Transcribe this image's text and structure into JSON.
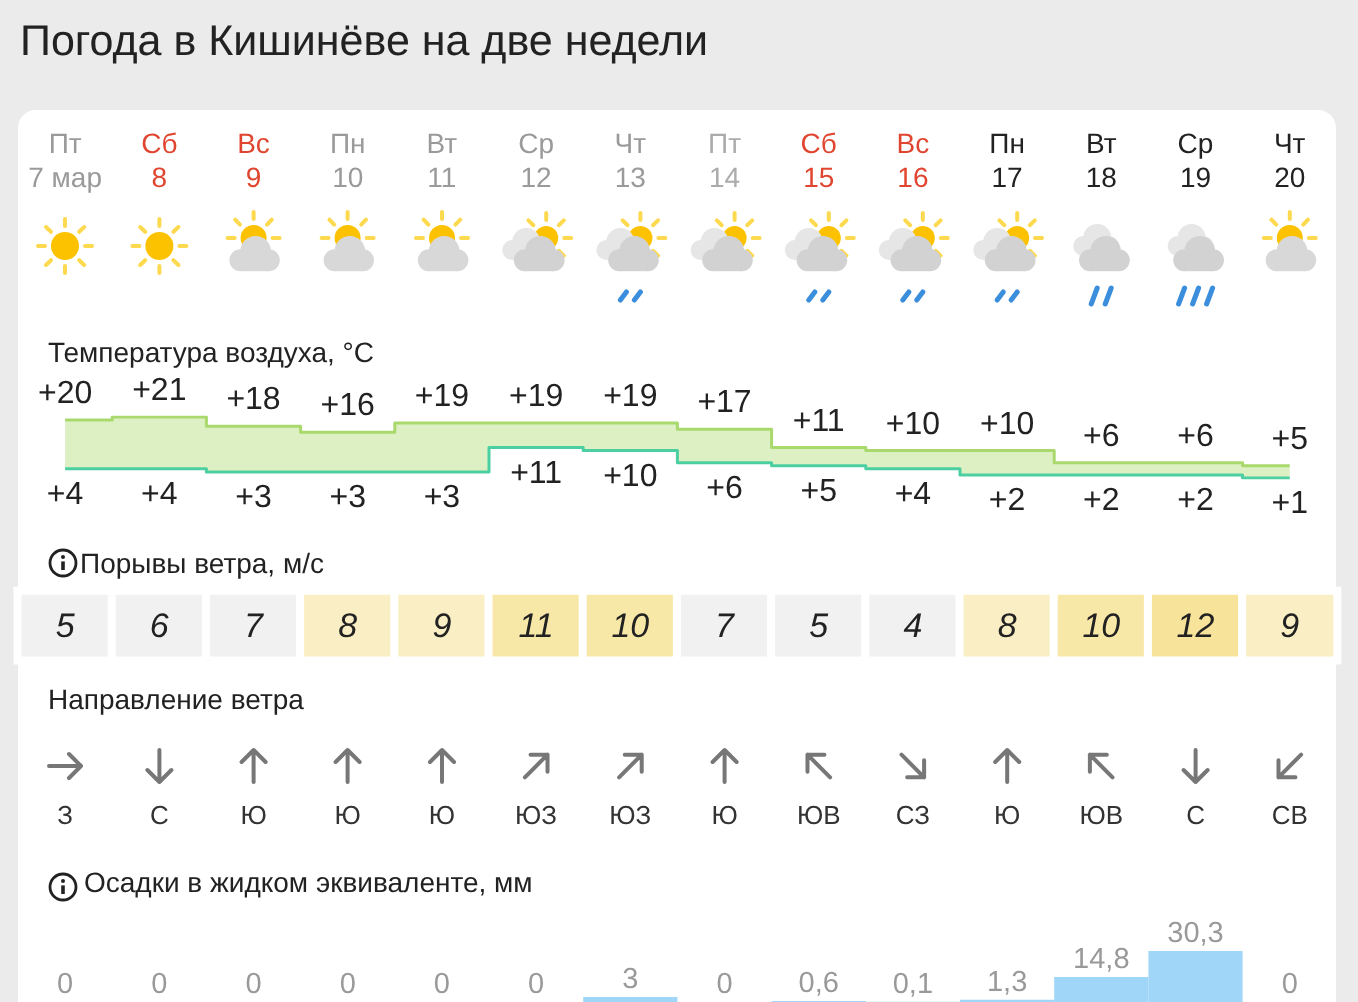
{
  "chart_data": [
    {
      "type": "step",
      "title": "Погода в Кишинёве на две недели",
      "subtitle": "Температура воздуха, °C",
      "categories": [
        "Пт\n7 мар",
        "Сб\n8",
        "Вс\n9",
        "Пн\n10",
        "Вт\n11",
        "Ср\n12",
        "Чт\n13",
        "Пт\n14",
        "Сб\n15",
        "Вс\n16",
        "Пн\n17",
        "Вт\n18",
        "Ср\n19",
        "Чт\n20"
      ],
      "tick_labels": "x",
      "series": [
        {
          "color": "#a9d96c",
          "values": [
            20,
            21,
            18,
            16,
            19,
            19,
            19,
            17,
            11,
            10,
            10,
            6,
            6,
            5
          ],
          "value_labels": [
            "+20",
            "+21",
            "+18",
            "+16",
            "+19",
            "+19",
            "+19",
            "+17",
            "+11",
            "+10",
            "+10",
            "+6",
            "+6",
            "+5"
          ],
          "lower": [
            4,
            4,
            3,
            3,
            3,
            11,
            10,
            6,
            5,
            4,
            2,
            2,
            2,
            1
          ],
          "upper": [
            20,
            21,
            18,
            16,
            19,
            19,
            19,
            17,
            11,
            10,
            10,
            6,
            6,
            5
          ]
        },
        {
          "color": "#4ccfa0",
          "values": [
            4,
            4,
            3,
            3,
            3,
            11,
            10,
            6,
            5,
            4,
            2,
            2,
            2,
            1
          ],
          "value_labels": [
            "+4",
            "+4",
            "+3",
            "+3",
            "+3",
            "+11",
            "+10",
            "+6",
            "+5",
            "+4",
            "+2",
            "+2",
            "+2",
            "+1"
          ]
        }
      ]
    },
    {
      "type": "heatmap",
      "title": "Порывы ветра, м/с",
      "categories": [
        null,
        null,
        null,
        null,
        null,
        null,
        null,
        null,
        null,
        null,
        null,
        null,
        null,
        null
      ],
      "y_categories": [
        null
      ],
      "tick_labels": false,
      "cells": [
        [
          5,
          6,
          7,
          8,
          9,
          11,
          10,
          7,
          5,
          4,
          8,
          10,
          12,
          9
        ]
      ],
      "colors": [
        "#f1f1f1",
        "#f1f1f1",
        "#f1f1f1",
        "#faefc4",
        "#faefc4",
        "#f8e8a8",
        "#f8e8a8",
        "#f1f1f1",
        "#f1f1f1",
        "#f1f1f1",
        "#faefc4",
        "#f8e8a8",
        "#f7e49a",
        "#faefc4"
      ],
      "data_labels": true
    },
    {
      "type": "other",
      "title": "Направление ветра",
      "categories": [
        "З",
        "С",
        "Ю",
        "Ю",
        "Ю",
        "ЮЗ",
        "ЮЗ",
        "Ю",
        "ЮВ",
        "СЗ",
        "Ю",
        "ЮВ",
        "С",
        "СВ"
      ]
    },
    {
      "type": "bar",
      "title": "Осадки в жидком эквиваленте, мм",
      "categories": [
        null,
        null,
        null,
        null,
        null,
        null,
        null,
        null,
        null,
        null,
        null,
        null,
        null,
        null
      ],
      "tick_labels": false,
      "values": [
        0,
        0,
        0,
        0,
        0,
        0,
        3,
        0,
        0.6,
        0.1,
        1.3,
        14.8,
        30.3,
        0
      ],
      "value_labels": [
        "0",
        "0",
        "0",
        "0",
        "0",
        "0",
        "3",
        "0",
        "0,6",
        "0,1",
        "1,3",
        "14,8",
        "30,3",
        "0"
      ],
      "color": "#a0d6f8"
    }
  ]
}
